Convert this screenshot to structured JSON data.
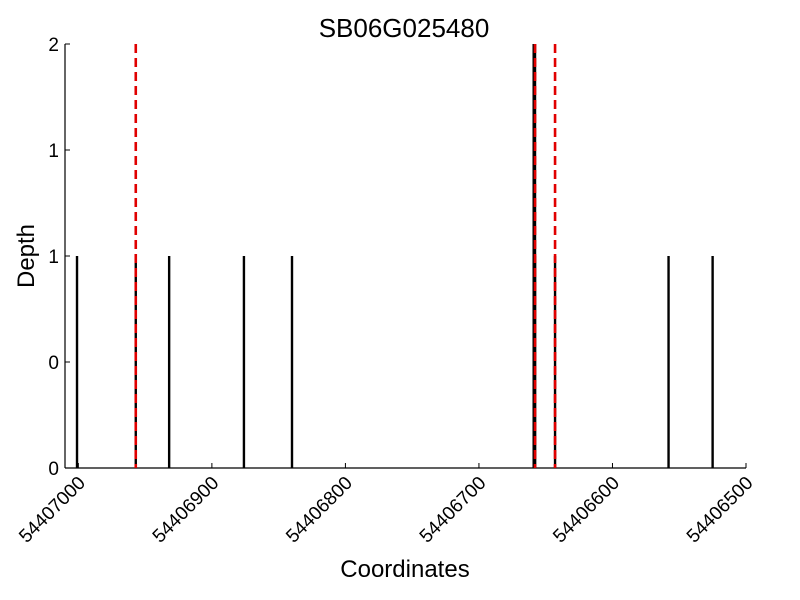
{
  "chart_data": {
    "type": "bar",
    "title": "SB06G025480",
    "xlabel": "Coordinates",
    "ylabel": "Depth",
    "xlim": [
      54407010,
      54406500
    ],
    "x_reversed": true,
    "ylim": [
      0,
      2
    ],
    "x_ticks": [
      {
        "value": 54407000,
        "label": "54407000"
      },
      {
        "value": 54406900,
        "label": "54406900"
      },
      {
        "value": 54406800,
        "label": "54406800"
      },
      {
        "value": 54406700,
        "label": "54406700"
      },
      {
        "value": 54406600,
        "label": "54406600"
      },
      {
        "value": 54406500,
        "label": "54406500"
      }
    ],
    "y_ticks": [
      {
        "value": 0,
        "label": "0"
      },
      {
        "value": 0.5,
        "label": "0"
      },
      {
        "value": 1,
        "label": "1"
      },
      {
        "value": 1.5,
        "label": "1"
      },
      {
        "value": 2,
        "label": "2"
      }
    ],
    "series": [
      {
        "x": [
          54407001,
          54406957,
          54406932,
          54406876,
          54406840,
          54406658,
          54406643,
          54406558,
          54406525
        ],
        "values": [
          1,
          1,
          1,
          1,
          1,
          1,
          1,
          1,
          1
        ],
        "color": "#000000"
      },
      {
        "x": [
          54406659,
          54406658
        ],
        "values": [
          2,
          2
        ],
        "color": "#000000"
      }
    ],
    "reference_lines": [
      {
        "x": 54406957,
        "color": "#e00000"
      },
      {
        "x": 54406658,
        "color": "#e00000"
      },
      {
        "x": 54406643,
        "color": "#e00000"
      }
    ],
    "grid": false,
    "legend": "none"
  }
}
